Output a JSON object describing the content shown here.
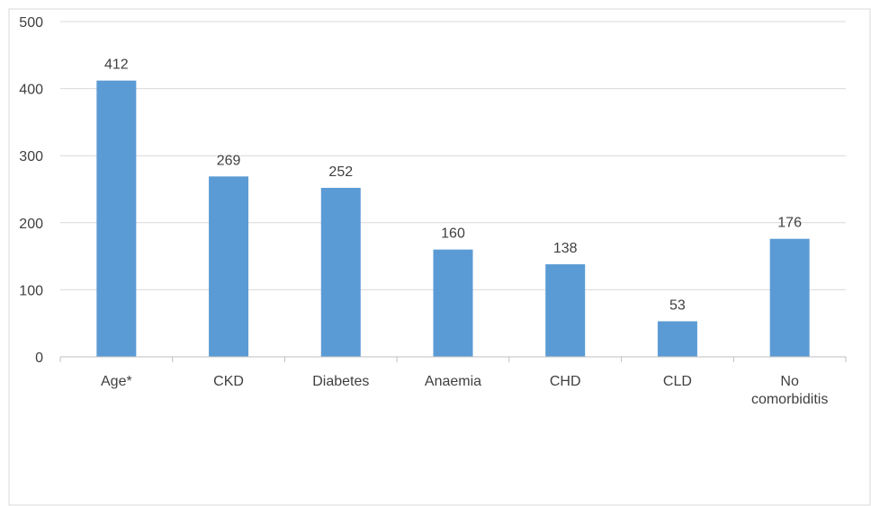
{
  "chart_data": {
    "type": "bar",
    "title": "",
    "xlabel": "",
    "ylabel": "",
    "categories": [
      "Age*",
      "CKD",
      "Diabetes",
      "Anaemia",
      "CHD",
      "CLD",
      "No comorbiditis"
    ],
    "category_lines": [
      [
        "Age*"
      ],
      [
        "CKD"
      ],
      [
        "Diabetes"
      ],
      [
        "Anaemia"
      ],
      [
        "CHD"
      ],
      [
        "CLD"
      ],
      [
        "No",
        "comorbiditis"
      ]
    ],
    "values": [
      412,
      269,
      252,
      160,
      138,
      53,
      176
    ],
    "data_labels": [
      "412",
      "269",
      "252",
      "160",
      "138",
      "53",
      "176"
    ],
    "ylim": [
      0,
      500
    ],
    "yticks": [
      0,
      100,
      200,
      300,
      400,
      500
    ],
    "ytick_labels": [
      "0",
      "100",
      "200",
      "300",
      "400",
      "500"
    ],
    "grid": true,
    "legend": "none",
    "bar_color": "#5b9bd5",
    "gridline_color": "#d9d9d9",
    "text_color": "#404040"
  }
}
